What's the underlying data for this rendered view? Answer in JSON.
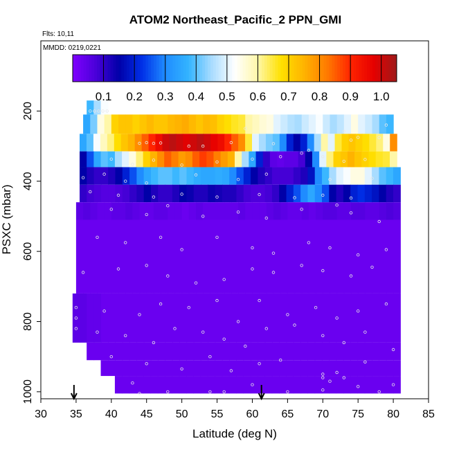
{
  "chart_data": {
    "type": "heatmap",
    "title": "ATOM2 Northeast_Pacific_2 PPN_GMI",
    "annotations": {
      "flights": "Flts: 10,11",
      "dates": "MMDD: 0219,0221"
    },
    "xlabel": "Latitude (deg N)",
    "ylabel": "PSXC (mbar)",
    "xlim": [
      30,
      85
    ],
    "ylim": [
      1020,
      0
    ],
    "x_ticks": [
      30,
      35,
      40,
      45,
      50,
      55,
      60,
      65,
      70,
      75,
      80,
      85
    ],
    "y_ticks": [
      200,
      400,
      600,
      800,
      1000
    ],
    "colorbar": {
      "range": [
        0.0,
        1.05
      ],
      "ticks": [
        0.1,
        0.2,
        0.3,
        0.4,
        0.5,
        0.6,
        0.7,
        0.8,
        0.9,
        1.0
      ],
      "tick_labels": [
        "0.1",
        "0.2",
        "0.3",
        "0.4",
        "0.5",
        "0.6",
        "0.7",
        "0.8",
        "0.9",
        "1.0"
      ],
      "colors": [
        "#7f00ff",
        "#4a00d9",
        "#0000a8",
        "#0030e8",
        "#1f8cff",
        "#33b4ff",
        "#a8dcff",
        "#ffffff",
        "#fff7a8",
        "#ffe100",
        "#ffb300",
        "#ff7a00",
        "#ff2400",
        "#e60000",
        "#9e1a1a"
      ]
    },
    "layers": [
      {
        "p_top": 170,
        "p_bot": 210,
        "segments": [
          {
            "lat_start": 36.5,
            "lat_end": 39.5,
            "values": [
              0.38,
              0.45,
              0.52
            ]
          }
        ]
      },
      {
        "p_top": 210,
        "p_bot": 265,
        "segments": [
          {
            "lat_start": 36.0,
            "lat_end": 80.0,
            "values": [
              0.35,
              0.42,
              0.55,
              0.6,
              0.7,
              0.72,
              0.72,
              0.7,
              0.72,
              0.74,
              0.72,
              0.72,
              0.74,
              0.75,
              0.76,
              0.74,
              0.72,
              0.74,
              0.73,
              0.7,
              0.68,
              0.66,
              0.65,
              0.6,
              0.58,
              0.56,
              0.55,
              0.5,
              0.48,
              0.46,
              0.45,
              0.48,
              0.5,
              0.52,
              0.48,
              0.45,
              0.47,
              0.5,
              0.55,
              0.5,
              0.48,
              0.45,
              0.4,
              0.38
            ]
          }
        ]
      },
      {
        "p_top": 265,
        "p_bot": 315,
        "segments": [
          {
            "lat_start": 35.5,
            "lat_end": 80.5,
            "values": [
              0.35,
              0.4,
              0.52,
              0.58,
              0.62,
              0.68,
              0.72,
              0.75,
              0.8,
              0.85,
              0.9,
              0.95,
              1.0,
              1.02,
              1.0,
              0.98,
              1.0,
              1.02,
              1.0,
              0.97,
              0.95,
              0.9,
              0.85,
              0.8,
              0.65,
              0.5,
              0.45,
              0.42,
              0.4,
              0.3,
              0.2,
              0.15,
              0.2,
              0.3,
              0.45,
              0.6,
              0.5,
              0.65,
              0.7,
              0.72,
              0.7,
              0.68,
              0.65,
              0.62,
              0.55,
              0.8
            ]
          }
        ]
      },
      {
        "p_top": 315,
        "p_bot": 360,
        "segments": [
          {
            "lat_start": 35.5,
            "lat_end": 80.5,
            "values": [
              0.15,
              0.25,
              0.35,
              0.4,
              0.38,
              0.45,
              0.5,
              0.55,
              0.62,
              0.7,
              0.75,
              0.8,
              0.85,
              0.82,
              0.78,
              0.8,
              0.85,
              0.88,
              0.86,
              0.82,
              0.78,
              0.75,
              0.6,
              0.45,
              0.35,
              0.2,
              0.1,
              0.05,
              0.04,
              0.05,
              0.05,
              0.08,
              0.15,
              0.3,
              0.5,
              0.62,
              0.7,
              0.72,
              0.75,
              0.72,
              0.7,
              0.68,
              0.66,
              0.65,
              0.6
            ]
          }
        ]
      },
      {
        "p_top": 360,
        "p_bot": 410,
        "segments": [
          {
            "lat_start": 35.5,
            "lat_end": 81.0,
            "values": [
              0.15,
              0.12,
              0.1,
              0.1,
              0.12,
              0.15,
              0.2,
              0.25,
              0.3,
              0.35,
              0.38,
              0.4,
              0.4,
              0.38,
              0.4,
              0.38,
              0.36,
              0.35,
              0.35,
              0.36,
              0.35,
              0.3,
              0.25,
              0.2,
              0.15,
              0.12,
              0.1,
              0.08,
              0.08,
              0.08,
              0.1,
              0.12,
              0.18,
              0.3,
              0.38,
              0.45,
              0.5,
              0.52,
              0.55,
              0.55,
              0.5,
              0.45,
              0.4,
              0.38,
              0.35
            ]
          }
        ]
      },
      {
        "p_top": 410,
        "p_bot": 460,
        "segments": [
          {
            "lat_start": 35.5,
            "lat_end": 81.0,
            "values": [
              0.1,
              0.08,
              0.07,
              0.06,
              0.06,
              0.07,
              0.08,
              0.1,
              0.12,
              0.15,
              0.12,
              0.1,
              0.1,
              0.12,
              0.15,
              0.14,
              0.12,
              0.12,
              0.14,
              0.13,
              0.12,
              0.12,
              0.1,
              0.08,
              0.07,
              0.07,
              0.08,
              0.1,
              0.15,
              0.2,
              0.25,
              0.3,
              0.35,
              0.3,
              0.25,
              0.15,
              0.12,
              0.15,
              0.2,
              0.22,
              0.2,
              0.18,
              0.15,
              0.12,
              0.1
            ]
          }
        ]
      },
      {
        "p_top": 460,
        "p_bot": 510,
        "segments": [
          {
            "lat_start": 35.0,
            "lat_end": 81.0,
            "values": [
              0.05,
              0.06,
              0.05,
              0.04,
              0.04,
              0.05,
              0.05,
              0.06,
              0.05,
              0.04,
              0.04,
              0.05,
              0.05,
              0.04,
              0.04,
              0.03,
              0.04,
              0.05,
              0.04,
              0.04,
              0.04,
              0.04,
              0.04,
              0.05,
              0.04,
              0.04,
              0.04,
              0.05,
              0.06,
              0.05,
              0.04,
              0.04,
              0.05,
              0.04,
              0.05,
              0.06,
              0.06,
              0.05,
              0.05,
              0.06,
              0.06,
              0.05,
              0.05,
              0.06,
              0.07,
              0.06
            ]
          }
        ]
      },
      {
        "p_top": 510,
        "p_bot": 720,
        "segments": [
          {
            "lat_start": 35.0,
            "lat_end": 81.0,
            "values": [
              0.03,
              0.03,
              0.03,
              0.03,
              0.03,
              0.03,
              0.03,
              0.03,
              0.03,
              0.03,
              0.03,
              0.03,
              0.03,
              0.03,
              0.03,
              0.03,
              0.03,
              0.03,
              0.03,
              0.03,
              0.03,
              0.03,
              0.03,
              0.03,
              0.03,
              0.03,
              0.03,
              0.03,
              0.03,
              0.03,
              0.03,
              0.03,
              0.03,
              0.03,
              0.03,
              0.03,
              0.03,
              0.03,
              0.03,
              0.03,
              0.03,
              0.03,
              0.03,
              0.03,
              0.03,
              0.03
            ]
          }
        ]
      },
      {
        "p_top": 720,
        "p_bot": 860,
        "segments": [
          {
            "lat_start": 34.5,
            "lat_end": 81.0,
            "values": [
              0.05,
              0.05,
              0.04,
              0.04,
              0.03,
              0.03,
              0.03,
              0.03,
              0.03,
              0.03,
              0.03,
              0.03,
              0.03,
              0.03,
              0.03,
              0.03,
              0.03,
              0.03,
              0.03,
              0.03,
              0.03,
              0.03,
              0.03,
              0.03,
              0.03,
              0.03,
              0.03,
              0.03,
              0.03,
              0.03,
              0.03,
              0.03,
              0.03,
              0.03,
              0.03,
              0.03,
              0.03,
              0.03,
              0.03,
              0.03,
              0.03,
              0.03,
              0.03,
              0.03,
              0.03,
              0.03
            ]
          }
        ]
      },
      {
        "p_top": 860,
        "p_bot": 910,
        "segments": [
          {
            "lat_start": 36.5,
            "lat_end": 81.0,
            "values": [
              0.03,
              0.03,
              0.03,
              0.03,
              0.03,
              0.03,
              0.03,
              0.03,
              0.03,
              0.03,
              0.03,
              0.03,
              0.03,
              0.03,
              0.03,
              0.03,
              0.03,
              0.03,
              0.03,
              0.03,
              0.03,
              0.03,
              0.03,
              0.03,
              0.03,
              0.03,
              0.03,
              0.03,
              0.03,
              0.03,
              0.03,
              0.03,
              0.03,
              0.03,
              0.03,
              0.03,
              0.03,
              0.03,
              0.03,
              0.03,
              0.03,
              0.03,
              0.03,
              0.03
            ]
          }
        ]
      },
      {
        "p_top": 910,
        "p_bot": 955,
        "segments": [
          {
            "lat_start": 38.5,
            "lat_end": 81.0,
            "values": [
              0.03,
              0.03,
              0.03,
              0.03,
              0.03,
              0.03,
              0.03,
              0.03,
              0.03,
              0.03,
              0.03,
              0.03,
              0.03,
              0.03,
              0.03,
              0.03,
              0.03,
              0.03,
              0.03,
              0.03,
              0.03,
              0.03,
              0.03,
              0.03,
              0.03,
              0.03,
              0.03,
              0.03,
              0.03,
              0.03,
              0.03,
              0.03,
              0.03,
              0.03,
              0.03,
              0.03,
              0.03,
              0.03,
              0.03,
              0.03,
              0.03,
              0.03
            ]
          }
        ]
      },
      {
        "p_top": 955,
        "p_bot": 1005,
        "segments": [
          {
            "lat_start": 40.5,
            "lat_end": 81.0,
            "values": [
              0.03,
              0.03,
              0.03,
              0.03,
              0.03,
              0.03,
              0.03,
              0.03,
              0.03,
              0.03,
              0.03,
              0.03,
              0.03,
              0.03,
              0.03,
              0.03,
              0.03,
              0.03,
              0.03,
              0.03,
              0.03,
              0.03,
              0.03,
              0.03,
              0.03,
              0.03,
              0.03,
              0.03,
              0.03,
              0.03,
              0.03,
              0.03,
              0.03,
              0.03,
              0.03,
              0.03,
              0.03,
              0.03,
              0.03,
              0.03
            ]
          }
        ]
      }
    ],
    "observation_points": [
      [
        37.0,
        200
      ],
      [
        37.6,
        200
      ],
      [
        38.2,
        200
      ],
      [
        38.8,
        200
      ],
      [
        39.4,
        200
      ],
      [
        44,
        292
      ],
      [
        45,
        290
      ],
      [
        46,
        292
      ],
      [
        47,
        291
      ],
      [
        51,
        300
      ],
      [
        53,
        300
      ],
      [
        57,
        290
      ],
      [
        59,
        250
      ],
      [
        63,
        293
      ],
      [
        68,
        312
      ],
      [
        73,
        258
      ],
      [
        74,
        283
      ],
      [
        75,
        275
      ],
      [
        78,
        276
      ],
      [
        79,
        240
      ],
      [
        40,
        337
      ],
      [
        43,
        352
      ],
      [
        46,
        340
      ],
      [
        50,
        354
      ],
      [
        55,
        345
      ],
      [
        60,
        337
      ],
      [
        64,
        330
      ],
      [
        67,
        320
      ],
      [
        70,
        330
      ],
      [
        73,
        343
      ],
      [
        76,
        338
      ],
      [
        36,
        390
      ],
      [
        39,
        380
      ],
      [
        42,
        400
      ],
      [
        45,
        405
      ],
      [
        52,
        382
      ],
      [
        58,
        395
      ],
      [
        62,
        380
      ],
      [
        71,
        395
      ],
      [
        77,
        392
      ],
      [
        37,
        430
      ],
      [
        41,
        440
      ],
      [
        46,
        445
      ],
      [
        50,
        437
      ],
      [
        55,
        445
      ],
      [
        61,
        438
      ],
      [
        66,
        447
      ],
      [
        70,
        440
      ],
      [
        74,
        448
      ],
      [
        40,
        480
      ],
      [
        45,
        495
      ],
      [
        48,
        470
      ],
      [
        53,
        500
      ],
      [
        58,
        488
      ],
      [
        62,
        505
      ],
      [
        67,
        480
      ],
      [
        72,
        468
      ],
      [
        74,
        490
      ],
      [
        78,
        515
      ],
      [
        38,
        560
      ],
      [
        42,
        575
      ],
      [
        47,
        560
      ],
      [
        50,
        595
      ],
      [
        55,
        560
      ],
      [
        60,
        590
      ],
      [
        63,
        605
      ],
      [
        68,
        575
      ],
      [
        71,
        590
      ],
      [
        75,
        610
      ],
      [
        79,
        595
      ],
      [
        36,
        660
      ],
      [
        41,
        650
      ],
      [
        45,
        640
      ],
      [
        48,
        670
      ],
      [
        52,
        690
      ],
      [
        56,
        680
      ],
      [
        60,
        650
      ],
      [
        63,
        660
      ],
      [
        67,
        640
      ],
      [
        70,
        655
      ],
      [
        74,
        670
      ],
      [
        77,
        645
      ],
      [
        35,
        760
      ],
      [
        35,
        790
      ],
      [
        39,
        770
      ],
      [
        44,
        780
      ],
      [
        47,
        750
      ],
      [
        51,
        760
      ],
      [
        55,
        740
      ],
      [
        58,
        800
      ],
      [
        61,
        740
      ],
      [
        65,
        780
      ],
      [
        69,
        760
      ],
      [
        72,
        790
      ],
      [
        75,
        770
      ],
      [
        79,
        750
      ],
      [
        35,
        820
      ],
      [
        38,
        830
      ],
      [
        42,
        840
      ],
      [
        46,
        860
      ],
      [
        49,
        820
      ],
      [
        53,
        830
      ],
      [
        56,
        850
      ],
      [
        59,
        870
      ],
      [
        62,
        820
      ],
      [
        66,
        810
      ],
      [
        70,
        840
      ],
      [
        73,
        860
      ],
      [
        76,
        830
      ],
      [
        80,
        880
      ],
      [
        40,
        900
      ],
      [
        45,
        920
      ],
      [
        50,
        935
      ],
      [
        54,
        900
      ],
      [
        57,
        940
      ],
      [
        61,
        920
      ],
      [
        64,
        910
      ],
      [
        70,
        950
      ],
      [
        70,
        960
      ],
      [
        71,
        970
      ],
      [
        72,
        945
      ],
      [
        73,
        960
      ],
      [
        76,
        915
      ],
      [
        80,
        980
      ],
      [
        43,
        975
      ],
      [
        48,
        1000
      ],
      [
        54,
        1000
      ],
      [
        60,
        980
      ],
      [
        65,
        1000
      ],
      [
        70,
        995
      ],
      [
        75,
        985
      ],
      [
        78,
        1000
      ],
      [
        44,
        1005
      ],
      [
        56,
        1000
      ]
    ],
    "flight_markers_lat": [
      34.7,
      61.3
    ]
  }
}
